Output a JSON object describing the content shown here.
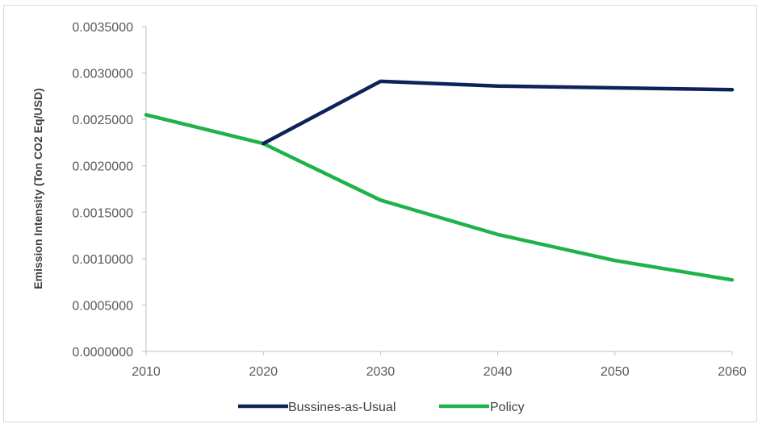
{
  "chart_data": {
    "type": "line",
    "title": "",
    "xlabel": "",
    "ylabel": "Emission Intensity (Ton CO2 Eq/USD)",
    "x": [
      2010,
      2020,
      2030,
      2040,
      2050,
      2060
    ],
    "xlim": [
      2010,
      2060
    ],
    "ylim": [
      0,
      0.0035
    ],
    "yticks": [
      0,
      0.0005,
      0.001,
      0.0015,
      0.002,
      0.0025,
      0.003,
      0.0035
    ],
    "ytick_labels": [
      "0.0000000",
      "0.0005000",
      "0.0010000",
      "0.0015000",
      "0.0020000",
      "0.0025000",
      "0.0030000",
      "0.0035000"
    ],
    "xtick_labels": [
      "2010",
      "2020",
      "2030",
      "2040",
      "2050",
      "2060"
    ],
    "grid": false,
    "legend_position": "bottom",
    "series": [
      {
        "name": "Bussines-as-Usual",
        "color": "#0d2259",
        "x": [
          2020,
          2030,
          2040,
          2050,
          2060
        ],
        "values": [
          0.00224,
          0.00291,
          0.00286,
          0.00284,
          0.00282
        ]
      },
      {
        "name": "Policy",
        "color": "#1fb24a",
        "x": [
          2010,
          2020,
          2030,
          2040,
          2050,
          2060
        ],
        "values": [
          0.00255,
          0.00224,
          0.00163,
          0.00126,
          0.00098,
          0.00077
        ]
      }
    ]
  }
}
